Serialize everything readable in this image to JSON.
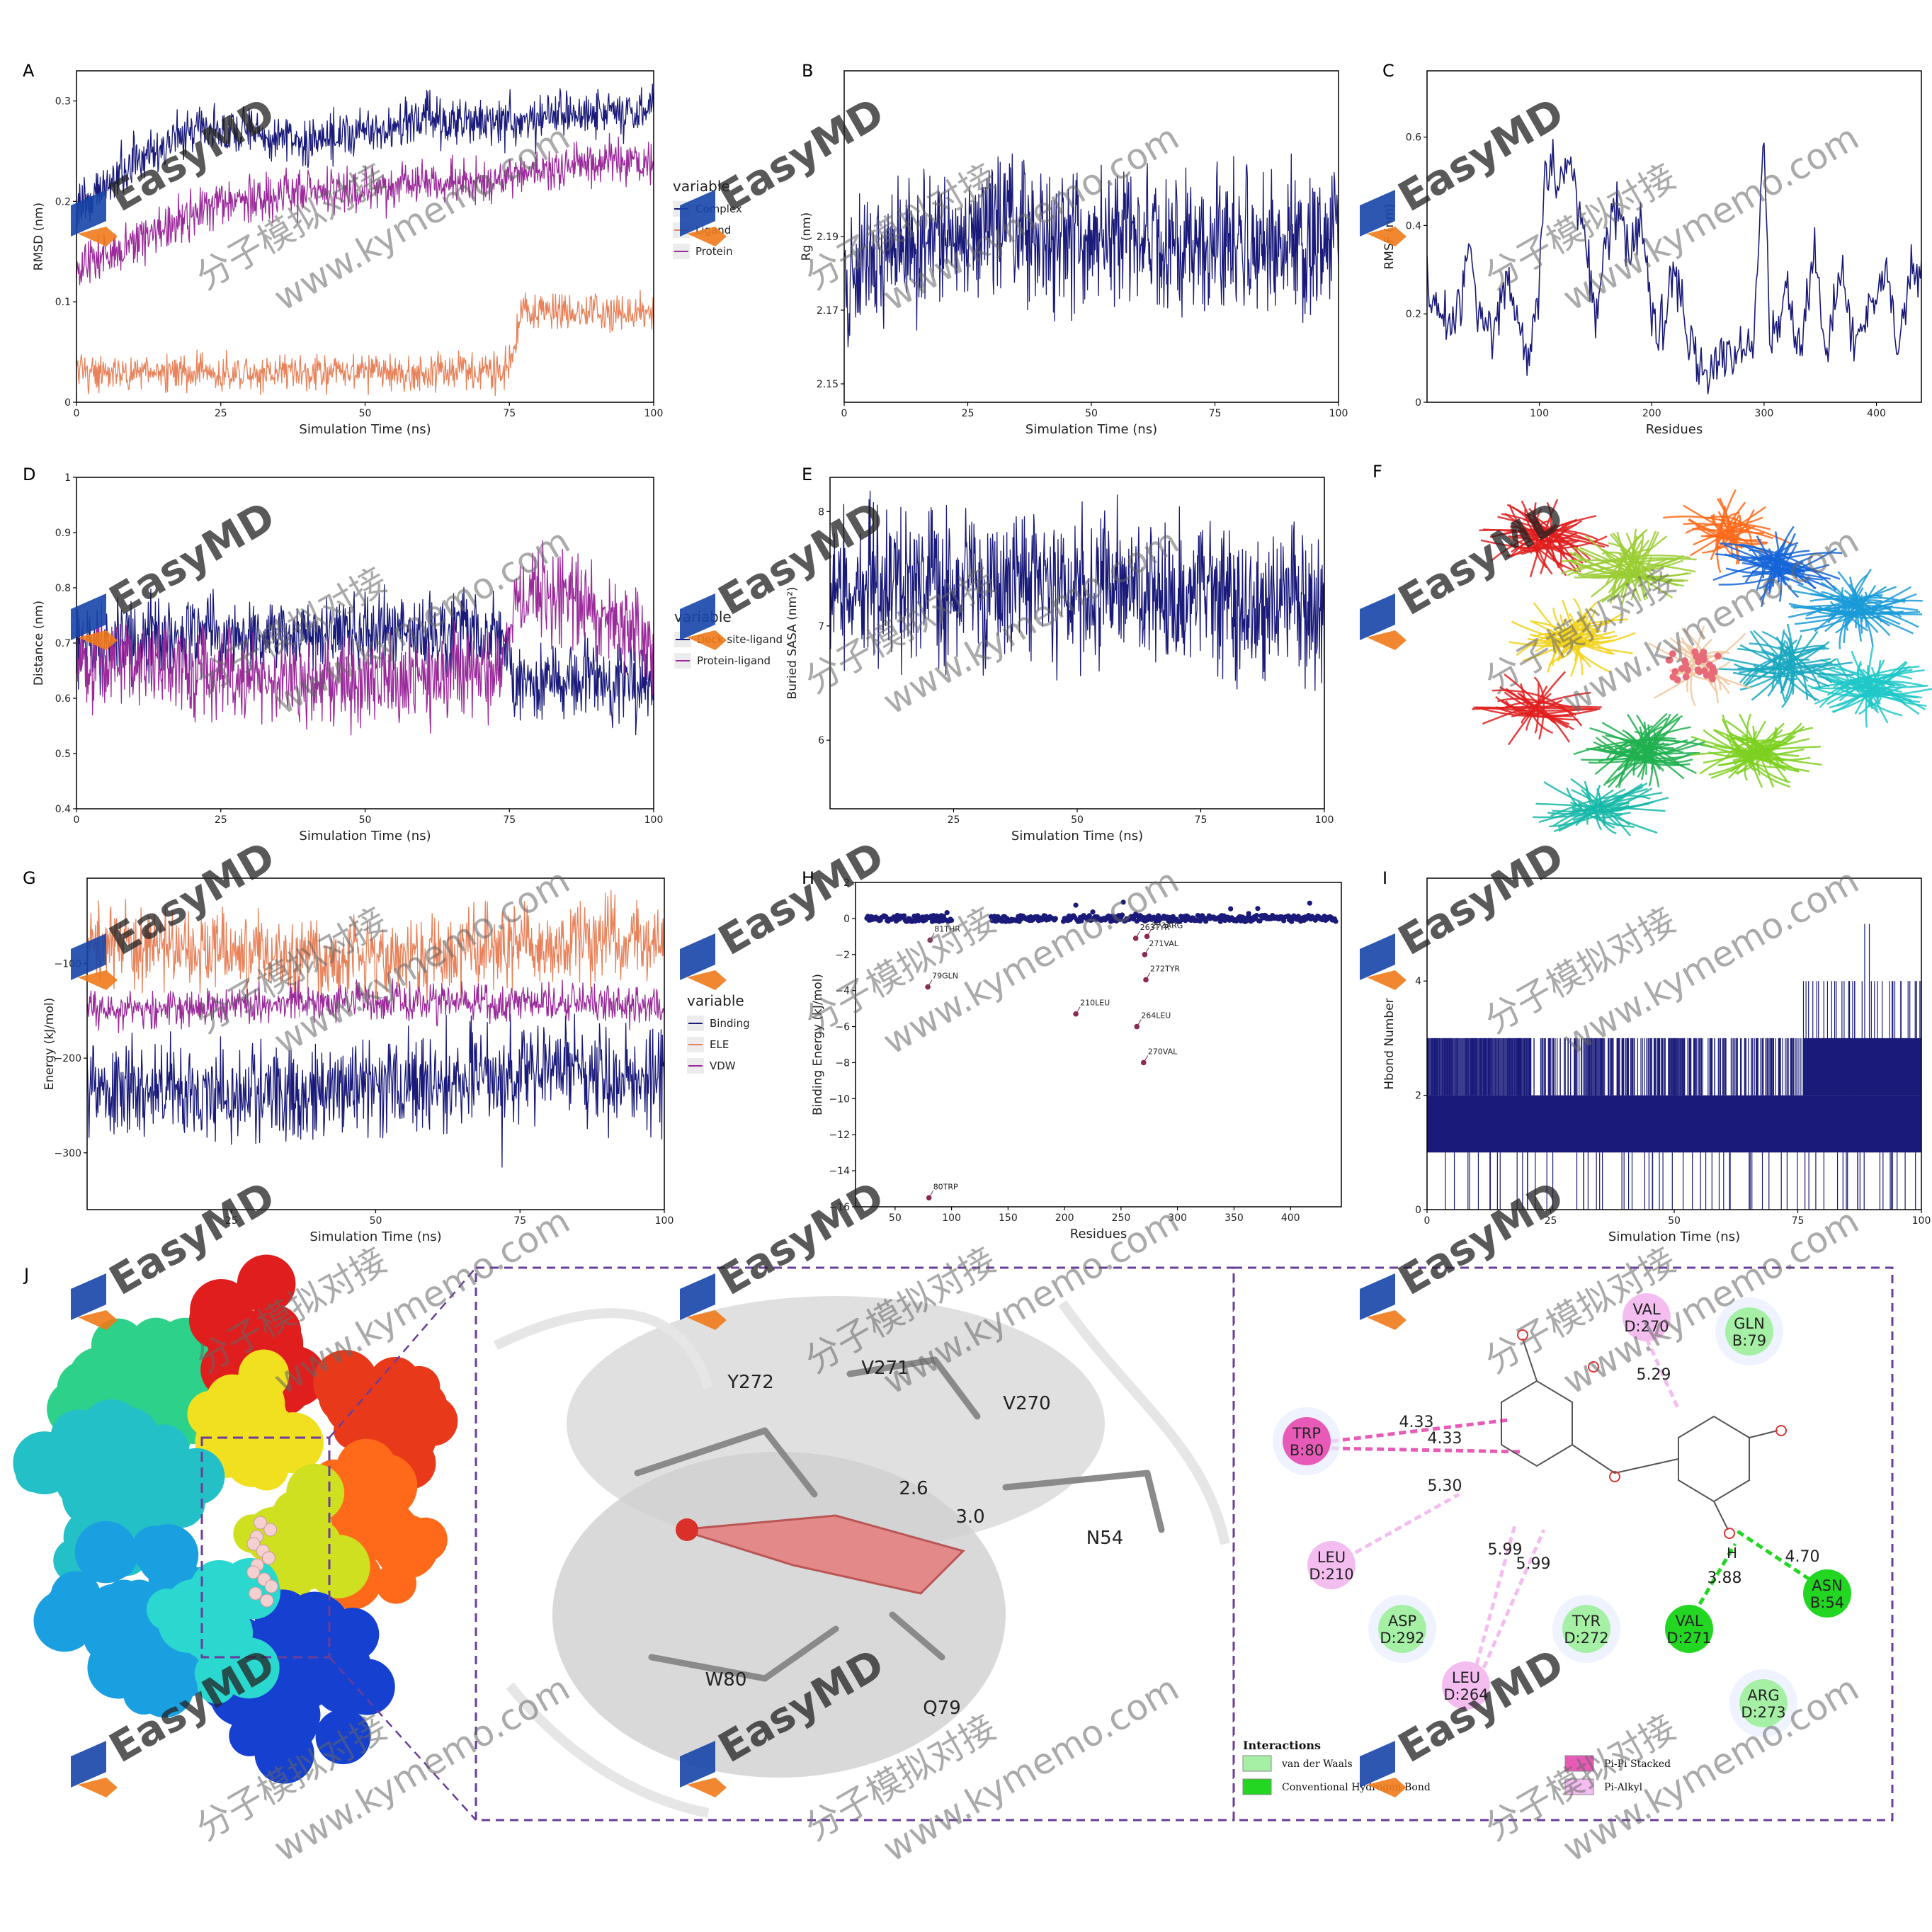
{
  "panels": {
    "A": {
      "letter": "A"
    },
    "B": {
      "letter": "B"
    },
    "C": {
      "letter": "C"
    },
    "D": {
      "letter": "D"
    },
    "E": {
      "letter": "E"
    },
    "F": {
      "letter": "F"
    },
    "G": {
      "letter": "G"
    },
    "H": {
      "letter": "H"
    },
    "I": {
      "letter": "I"
    },
    "J": {
      "letter": "J"
    }
  },
  "chart_data": [
    {
      "id": "A",
      "type": "line",
      "xlabel": "Simulation Time (ns)",
      "ylabel": "RMSD (nm)",
      "xlim": [
        0,
        100
      ],
      "ylim": [
        0,
        0.33
      ],
      "xticks": [
        0,
        25,
        50,
        75,
        100
      ],
      "yticks": [
        0,
        0.1,
        0.2,
        0.3
      ],
      "ytick_labels": [
        "0",
        "0.1",
        "0.2",
        "0.3"
      ],
      "legend_title": "variable",
      "series": [
        {
          "name": "Complex",
          "color": "#1a1a7a",
          "anchors": [
            [
              0,
              0.19
            ],
            [
              10,
              0.24
            ],
            [
              20,
              0.27
            ],
            [
              30,
              0.27
            ],
            [
              40,
              0.26
            ],
            [
              50,
              0.27
            ],
            [
              60,
              0.28
            ],
            [
              70,
              0.28
            ],
            [
              80,
              0.28
            ],
            [
              90,
              0.29
            ],
            [
              100,
              0.29
            ]
          ],
          "noise": 0.012
        },
        {
          "name": "Ligand",
          "color": "#e8825a",
          "anchors": [
            [
              0,
              0.03
            ],
            [
              25,
              0.03
            ],
            [
              50,
              0.03
            ],
            [
              74,
              0.03
            ],
            [
              76,
              0.06
            ],
            [
              77,
              0.09
            ],
            [
              100,
              0.09
            ]
          ],
          "noise": 0.009
        },
        {
          "name": "Protein",
          "color": "#9b2a9b",
          "anchors": [
            [
              0,
              0.13
            ],
            [
              10,
              0.16
            ],
            [
              20,
              0.19
            ],
            [
              30,
              0.2
            ],
            [
              40,
              0.21
            ],
            [
              50,
              0.21
            ],
            [
              60,
              0.22
            ],
            [
              70,
              0.22
            ],
            [
              80,
              0.23
            ],
            [
              90,
              0.24
            ],
            [
              100,
              0.24
            ]
          ],
          "noise": 0.011
        }
      ]
    },
    {
      "id": "B",
      "type": "line",
      "xlabel": "Simulation Time (ns)",
      "ylabel": "Rg (nm)",
      "xlim": [
        0,
        100
      ],
      "ylim": [
        2.145,
        2.235
      ],
      "xticks": [
        0,
        25,
        50,
        75,
        100
      ],
      "yticks": [
        2.15,
        2.17,
        2.19
      ],
      "ytick_labels": [
        "2.15",
        "2.17",
        "2.19"
      ],
      "series": [
        {
          "name": "",
          "color": "#1a1a7a",
          "anchors": [
            [
              0,
              2.18
            ],
            [
              10,
              2.185
            ],
            [
              20,
              2.19
            ],
            [
              30,
              2.195
            ],
            [
              40,
              2.19
            ],
            [
              50,
              2.19
            ],
            [
              60,
              2.19
            ],
            [
              70,
              2.188
            ],
            [
              80,
              2.188
            ],
            [
              90,
              2.188
            ],
            [
              100,
              2.188
            ]
          ],
          "noise": 0.009
        }
      ]
    },
    {
      "id": "C",
      "type": "line",
      "xlabel": "Residues",
      "ylabel": "RMSF (nm)",
      "xlim": [
        0,
        440
      ],
      "ylim": [
        0,
        0.75
      ],
      "xticks": [
        100,
        200,
        300,
        400
      ],
      "yticks": [
        0,
        0.2,
        0.4,
        0.6
      ],
      "ytick_labels": [
        "0",
        "0.2",
        "0.4",
        "0.6"
      ],
      "series": [
        {
          "name": "",
          "color": "#1a1a7a",
          "anchors": [
            [
              0,
              0.25
            ],
            [
              10,
              0.2
            ],
            [
              20,
              0.18
            ],
            [
              30,
              0.22
            ],
            [
              38,
              0.36
            ],
            [
              45,
              0.2
            ],
            [
              60,
              0.17
            ],
            [
              70,
              0.28
            ],
            [
              80,
              0.18
            ],
            [
              90,
              0.12
            ],
            [
              100,
              0.25
            ],
            [
              105,
              0.52
            ],
            [
              130,
              0.52
            ],
            [
              140,
              0.36
            ],
            [
              150,
              0.18
            ],
            [
              160,
              0.38
            ],
            [
              170,
              0.46
            ],
            [
              180,
              0.35
            ],
            [
              190,
              0.4
            ],
            [
              200,
              0.2
            ],
            [
              210,
              0.16
            ],
            [
              220,
              0.3
            ],
            [
              230,
              0.18
            ],
            [
              240,
              0.1
            ],
            [
              250,
              0.08
            ],
            [
              260,
              0.12
            ],
            [
              270,
              0.1
            ],
            [
              280,
              0.12
            ],
            [
              290,
              0.1
            ],
            [
              300,
              0.62
            ],
            [
              305,
              0.12
            ],
            [
              320,
              0.25
            ],
            [
              330,
              0.1
            ],
            [
              345,
              0.32
            ],
            [
              355,
              0.1
            ],
            [
              370,
              0.3
            ],
            [
              380,
              0.12
            ],
            [
              395,
              0.22
            ],
            [
              410,
              0.3
            ],
            [
              420,
              0.1
            ],
            [
              430,
              0.3
            ],
            [
              440,
              0.26
            ]
          ],
          "noise": 0.03
        }
      ]
    },
    {
      "id": "D",
      "type": "line",
      "xlabel": "Simulation Time (ns)",
      "ylabel": "Distance (nm)",
      "xlim": [
        0,
        100
      ],
      "ylim": [
        0.4,
        1.0
      ],
      "xticks": [
        0,
        25,
        50,
        75,
        100
      ],
      "yticks": [
        0.4,
        0.5,
        0.6,
        0.7,
        0.8,
        0.9,
        1
      ],
      "ytick_labels": [
        "0.4",
        "0.5",
        "0.6",
        "0.7",
        "0.8",
        "0.9",
        "1"
      ],
      "legend_title": "variable",
      "series": [
        {
          "name": "Dock site-ligand",
          "color": "#1a1a7a",
          "anchors": [
            [
              0,
              0.7
            ],
            [
              25,
              0.72
            ],
            [
              50,
              0.72
            ],
            [
              74,
              0.72
            ],
            [
              76,
              0.63
            ],
            [
              100,
              0.63
            ]
          ],
          "noise": 0.035
        },
        {
          "name": "Protein-ligand",
          "color": "#9b2a9b",
          "anchors": [
            [
              0,
              0.68
            ],
            [
              25,
              0.64
            ],
            [
              50,
              0.63
            ],
            [
              74,
              0.65
            ],
            [
              76,
              0.78
            ],
            [
              85,
              0.78
            ],
            [
              100,
              0.7
            ]
          ],
          "noise": 0.04
        }
      ]
    },
    {
      "id": "E",
      "type": "line",
      "xlabel": "Simulation Time (ns)",
      "ylabel": "Buried SASA (nm²)",
      "xlim": [
        0,
        100
      ],
      "ylim": [
        5.4,
        8.3
      ],
      "xticks": [
        25,
        50,
        75,
        100
      ],
      "yticks": [
        6,
        7,
        8
      ],
      "ytick_labels": [
        "6",
        "7",
        "8"
      ],
      "series": [
        {
          "name": "",
          "color": "#1a1a7a",
          "anchors": [
            [
              0,
              7.3
            ],
            [
              25,
              7.35
            ],
            [
              50,
              7.35
            ],
            [
              75,
              7.25
            ],
            [
              100,
              7.2
            ]
          ],
          "noise": 0.32
        }
      ]
    },
    {
      "id": "G",
      "type": "line",
      "xlabel": "Simulation Time (ns)",
      "ylabel": "Energy (kJ/mol)",
      "xlim": [
        0,
        100
      ],
      "ylim": [
        -360,
        -10
      ],
      "xticks": [
        25,
        50,
        75,
        100
      ],
      "yticks": [
        -300,
        -200,
        -100
      ],
      "ytick_labels": [
        "−300",
        "−200",
        "−100"
      ],
      "legend_title": "variable",
      "series": [
        {
          "name": "Binding",
          "color": "#1a1a7a",
          "anchors": [
            [
              0,
              -230
            ],
            [
              25,
              -240
            ],
            [
              50,
              -230
            ],
            [
              75,
              -215
            ],
            [
              100,
              -220
            ]
          ],
          "noise": 25
        },
        {
          "name": "ELE",
          "color": "#e8825a",
          "anchors": [
            [
              0,
              -80
            ],
            [
              25,
              -90
            ],
            [
              50,
              -95
            ],
            [
              75,
              -80
            ],
            [
              100,
              -75
            ]
          ],
          "noise": 20
        },
        {
          "name": "VDW",
          "color": "#9b2a9b",
          "anchors": [
            [
              0,
              -150
            ],
            [
              25,
              -145
            ],
            [
              50,
              -140
            ],
            [
              75,
              -140
            ],
            [
              100,
              -145
            ]
          ],
          "noise": 10
        }
      ]
    },
    {
      "id": "H",
      "type": "scatter",
      "xlabel": "Residues",
      "ylabel": "Binding Energy (kJ/mol)",
      "xlim": [
        15,
        445
      ],
      "ylim": [
        -16,
        2
      ],
      "xticks": [
        50,
        100,
        150,
        200,
        250,
        300,
        350,
        400
      ],
      "yticks": [
        -16,
        -14,
        -12,
        -10,
        -8,
        -6,
        -4,
        -2,
        0,
        2
      ],
      "ytick_labels": [
        "−16",
        "−14",
        "−12",
        "−10",
        "−8",
        "−6",
        "−4",
        "−2",
        "0",
        "2"
      ],
      "gaps": [
        [
          101,
          134
        ],
        [
          193,
          198
        ]
      ],
      "color": "#1a1a7a",
      "labeled_points": [
        {
          "x": 80,
          "y": -15.5,
          "label": "80TRP"
        },
        {
          "x": 79,
          "y": -3.8,
          "label": "79GLN"
        },
        {
          "x": 81,
          "y": -1.2,
          "label": "81THR"
        },
        {
          "x": 210,
          "y": -5.3,
          "label": "210LEU"
        },
        {
          "x": 263,
          "y": -1.1,
          "label": "263TYR"
        },
        {
          "x": 264,
          "y": -6.0,
          "label": "264LEU"
        },
        {
          "x": 270,
          "y": -8.0,
          "label": "270VAL"
        },
        {
          "x": 271,
          "y": -2.0,
          "label": "271VAL"
        },
        {
          "x": 272,
          "y": -3.4,
          "label": "272TYR"
        },
        {
          "x": 273,
          "y": -1.0,
          "label": "273ARG"
        }
      ]
    },
    {
      "id": "I",
      "type": "line",
      "xlabel": "Simulation Time (ns)",
      "ylabel": "Hbond Number",
      "xlim": [
        0,
        100
      ],
      "ylim": [
        0,
        5.8
      ],
      "xticks": [
        0,
        25,
        50,
        75,
        100
      ],
      "yticks": [
        0,
        2,
        4
      ],
      "ytick_labels": [
        "0",
        "2",
        "4"
      ],
      "series": [
        {
          "name": "",
          "color": "#1a1a7a"
        }
      ]
    }
  ],
  "panel_J": {
    "residue_labels_3d": [
      "Y272",
      "V271",
      "V270",
      "N54",
      "W80",
      "Q79"
    ],
    "distance_labels_3d": [
      "2.6",
      "3.0"
    ],
    "nodes_2d": [
      {
        "text": "VAL\nD:270",
        "kind": "pialkyl"
      },
      {
        "text": "GLN\nB:79",
        "kind": "vdw"
      },
      {
        "text": "TRP\nB:80",
        "kind": "pipi"
      },
      {
        "text": "LEU\nD:210",
        "kind": "pialkyl"
      },
      {
        "text": "ASP\nD:292",
        "kind": "vdw"
      },
      {
        "text": "TYR\nD:272",
        "kind": "vdw"
      },
      {
        "text": "LEU\nD:264",
        "kind": "pialkyl"
      },
      {
        "text": "VAL\nD:271",
        "kind": "hbond"
      },
      {
        "text": "ASN\nB:54",
        "kind": "hbond"
      },
      {
        "text": "ARG\nD:273",
        "kind": "vdw"
      }
    ],
    "distances_2d": [
      "4.33",
      "4.33",
      "5.29",
      "5.30",
      "5.99",
      "5.99",
      "3.88",
      "4.70"
    ],
    "h_label": "H",
    "legend_title": "Interactions",
    "legend_items": [
      {
        "label": "van der Waals",
        "color": "#a6f0a6"
      },
      {
        "label": "Conventional Hydrogen Bond",
        "color": "#22d622"
      },
      {
        "label": "Pi-Pi Stacked",
        "color": "#e85ab8"
      },
      {
        "label": "Pi-Alkyl",
        "color": "#f4bdf0"
      }
    ]
  },
  "watermark": {
    "brand": "EasyMD",
    "cn": "分子模拟对接",
    "url": "www.kymemo.com"
  }
}
